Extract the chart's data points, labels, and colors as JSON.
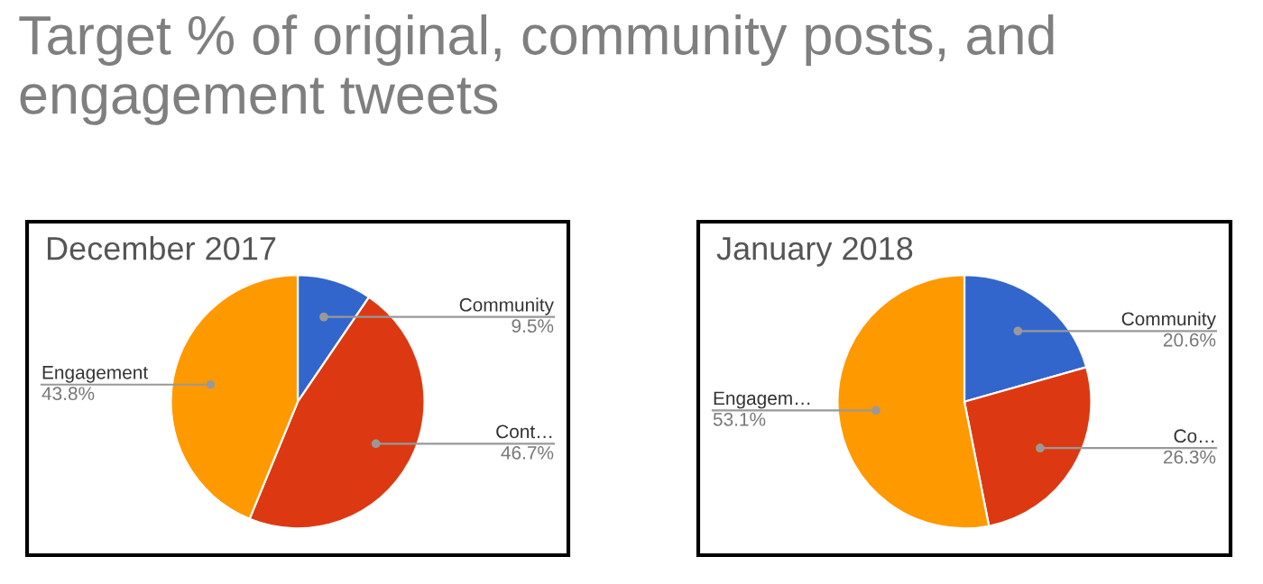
{
  "chart_data": [
    {
      "type": "pie",
      "title": "December 2017",
      "annotations": [
        "Target % of original, community posts, and engagement tweets"
      ],
      "categories": [
        "Community",
        "Cont…",
        "Engagement"
      ],
      "values": [
        9.5,
        46.7,
        43.8
      ],
      "value_labels": [
        "9.5%",
        "46.7%",
        "43.8%"
      ],
      "colors": [
        "#3366cc",
        "#dc3912",
        "#ff9900"
      ]
    },
    {
      "type": "pie",
      "title": "January 2018",
      "categories": [
        "Community",
        "Co…",
        "Engagem…"
      ],
      "values": [
        20.6,
        26.3,
        53.1
      ],
      "value_labels": [
        "20.6%",
        "26.3%",
        "53.1%"
      ],
      "colors": [
        "#3366cc",
        "#dc3912",
        "#ff9900"
      ]
    }
  ]
}
